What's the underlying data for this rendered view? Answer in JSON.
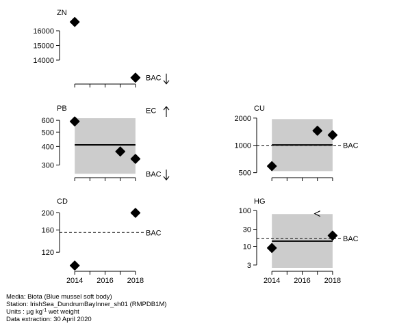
{
  "chart_data": [
    {
      "panel": "ZN",
      "type": "scatter",
      "title": "ZN",
      "xlim": [
        2013,
        2018.5
      ],
      "ylim": [
        12600,
        16700
      ],
      "scale": "linear",
      "yticks": [
        14000,
        15000,
        16000
      ],
      "yticklabels": [
        "14000",
        "15000",
        "16000"
      ],
      "points": [
        {
          "x": 2014,
          "y": 16600
        },
        {
          "x": 2018,
          "y": 12800
        }
      ],
      "assessment": null,
      "refs": [
        {
          "label": "BAC",
          "value": 12800,
          "line": "none",
          "arrow": "down"
        }
      ]
    },
    {
      "panel": "PB",
      "type": "scatter",
      "title": "PB",
      "xlim": [
        2013,
        2018.5
      ],
      "ylim": [
        260,
        640
      ],
      "scale": "log",
      "yticks": [
        300,
        400,
        500,
        600
      ],
      "yticklabels": [
        "300",
        "400",
        "500",
        "600"
      ],
      "points": [
        {
          "x": 2014,
          "y": 590
        },
        {
          "x": 2017,
          "y": 370
        },
        {
          "x": 2018,
          "y": 330
        }
      ],
      "assessment": {
        "x0": 2014,
        "x1": 2018,
        "y0": 262,
        "y1": 620,
        "fit": 410
      },
      "refs": [
        {
          "label": "EC",
          "value": 700,
          "line": "none",
          "arrow": "up"
        },
        {
          "label": "BAC",
          "value": 262,
          "line": "none",
          "arrow": "down"
        }
      ]
    },
    {
      "panel": "CU",
      "type": "scatter",
      "title": "CU",
      "xlim": [
        2013,
        2018.5
      ],
      "ylim": [
        480,
        2100
      ],
      "scale": "log",
      "yticks": [
        500,
        1000,
        2000
      ],
      "yticklabels": [
        "500",
        "1000",
        "2000"
      ],
      "points": [
        {
          "x": 2014,
          "y": 590
        },
        {
          "x": 2017,
          "y": 1450
        },
        {
          "x": 2018,
          "y": 1300
        }
      ],
      "assessment": {
        "x0": 2014,
        "x1": 2018,
        "y0": 520,
        "y1": 1950,
        "fit": 1010
      },
      "refs": [
        {
          "label": "BAC",
          "value": 1000,
          "line": "dashed",
          "arrow": "none"
        }
      ]
    },
    {
      "panel": "CD",
      "type": "scatter",
      "title": "CD",
      "xlim": [
        2013,
        2018.5
      ],
      "ylim": [
        98,
        210
      ],
      "scale": "log",
      "yticks": [
        120,
        160,
        200
      ],
      "yticklabels": [
        "120",
        "160",
        "200"
      ],
      "points": [
        {
          "x": 2014,
          "y": 101
        },
        {
          "x": 2018,
          "y": 200
        }
      ],
      "assessment": null,
      "refs": [
        {
          "label": "BAC",
          "value": 155,
          "line": "dashed",
          "arrow": "none"
        }
      ]
    },
    {
      "panel": "HG",
      "type": "scatter",
      "title": "HG",
      "xlim": [
        2013,
        2018.5
      ],
      "ylim": [
        2.5,
        110
      ],
      "scale": "log",
      "yticks": [
        3,
        10,
        30,
        100
      ],
      "yticklabels": [
        "3",
        "10",
        "30",
        "100"
      ],
      "points": [
        {
          "x": 2014,
          "y": 9
        },
        {
          "x": 2018,
          "y": 20
        }
      ],
      "lessThan": [
        {
          "x": 2017,
          "y": 82
        }
      ],
      "assessment": {
        "x0": 2014,
        "x1": 2018,
        "y0": 2.5,
        "y1": 80,
        "fit": 14
      },
      "refs": [
        {
          "label": "BAC",
          "value": 16.5,
          "line": "dashed",
          "arrow": "none"
        }
      ]
    }
  ],
  "x_axis": {
    "ticks": [
      2014,
      2016,
      2018
    ],
    "minor_ticks": [
      2015,
      2017
    ]
  },
  "footer": {
    "media": "Media: Biota (Blue mussel soft body)",
    "station": "Station: IrishSea_DundrumBayInner_sh01 (RMPDB1M)",
    "units_prefix": "Units : µg kg",
    "units_sup": "-1",
    "units_suffix": " wet weight",
    "extraction": "Data extraction: 30 April 2020"
  },
  "colors": {
    "band": "#cccccc",
    "marker": "#000000"
  }
}
